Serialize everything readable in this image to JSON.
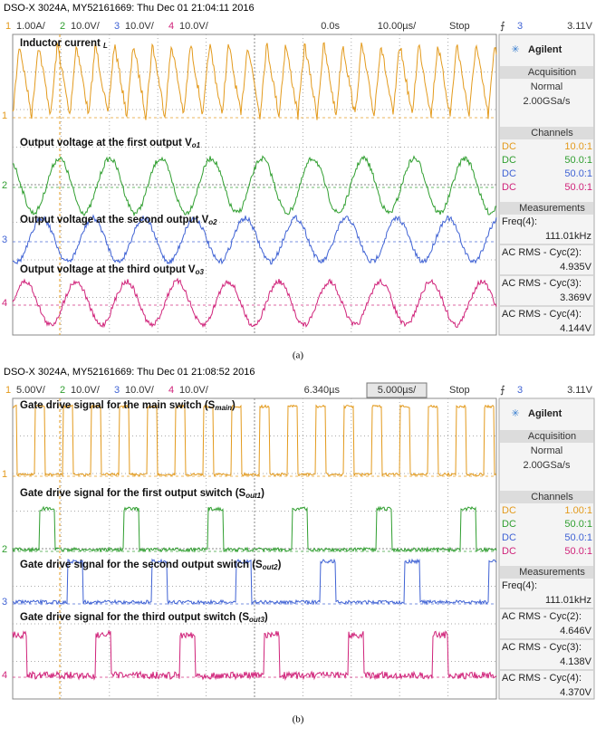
{
  "panels": [
    {
      "header": "DSO-X 3024A, MY52161669: Thu Dec 01 21:04:11 2016",
      "channels": [
        {
          "num": "1",
          "scale": "1.00A/"
        },
        {
          "num": "2",
          "scale": "10.0V/"
        },
        {
          "num": "3",
          "scale": "10.0V/"
        },
        {
          "num": "4",
          "scale": "10.0V/"
        }
      ],
      "time_offset": "0.0s",
      "time_scale": "10.00µs/",
      "status": "Stop",
      "trigger_channel": "3",
      "trigger_level": "3.11V",
      "traces": [
        {
          "prefix": "Inductor current ",
          "sub": "L",
          "suffix": ""
        },
        {
          "prefix": "Output voltage at the first output V",
          "sub": "o1",
          "suffix": ""
        },
        {
          "prefix": "Output voltage at the second output V",
          "sub": "o2",
          "suffix": ""
        },
        {
          "prefix": "Output voltage at the third output V",
          "sub": "o3",
          "suffix": ""
        }
      ],
      "side": {
        "brand": "Agilent",
        "acquisition_title": "Acquisition",
        "acquisition_mode": "Normal",
        "sample_rate": "2.00GSa/s",
        "channels_title": "Channels",
        "channel_rows": [
          {
            "coupling": "DC",
            "probe": "10.0:1"
          },
          {
            "coupling": "DC",
            "probe": "50.0:1"
          },
          {
            "coupling": "DC",
            "probe": "50.0:1"
          },
          {
            "coupling": "DC",
            "probe": "50.0:1"
          }
        ],
        "measurements_title": "Measurements",
        "measurements": [
          {
            "label": "Freq(4):",
            "value": "111.01kHz"
          },
          {
            "label": "AC RMS - Cyc(2):",
            "value": "4.935V"
          },
          {
            "label": "AC RMS - Cyc(3):",
            "value": "3.369V"
          },
          {
            "label": "AC RMS - Cyc(4):",
            "value": "4.144V"
          }
        ]
      },
      "caption": "(a)"
    },
    {
      "header": "DSO-X 3024A, MY52161669: Thu Dec 01 21:08:52 2016",
      "channels": [
        {
          "num": "1",
          "scale": "5.00V/"
        },
        {
          "num": "2",
          "scale": "10.0V/"
        },
        {
          "num": "3",
          "scale": "10.0V/"
        },
        {
          "num": "4",
          "scale": "10.0V/"
        }
      ],
      "time_offset": "6.340µs",
      "time_scale": "5.000µs/",
      "status": "Stop",
      "trigger_channel": "3",
      "trigger_level": "3.11V",
      "traces": [
        {
          "prefix": "Gate drive signal for the main switch (S",
          "sub": "main",
          "suffix": ")"
        },
        {
          "prefix": "Gate drive signal for the first output switch (S",
          "sub": "out1",
          "suffix": ")"
        },
        {
          "prefix": "Gate drive signal for the second output switch (S",
          "sub": "out2",
          "suffix": ")"
        },
        {
          "prefix": "Gate drive signal for the third output switch (S",
          "sub": "out3",
          "suffix": ")"
        }
      ],
      "side": {
        "brand": "Agilent",
        "acquisition_title": "Acquisition",
        "acquisition_mode": "Normal",
        "sample_rate": "2.00GSa/s",
        "channels_title": "Channels",
        "channel_rows": [
          {
            "coupling": "DC",
            "probe": "1.00:1"
          },
          {
            "coupling": "DC",
            "probe": "50.0:1"
          },
          {
            "coupling": "DC",
            "probe": "50.0:1"
          },
          {
            "coupling": "DC",
            "probe": "50.0:1"
          }
        ],
        "measurements_title": "Measurements",
        "measurements": [
          {
            "label": "Freq(4):",
            "value": "111.01kHz"
          },
          {
            "label": "AC RMS - Cyc(2):",
            "value": "4.646V"
          },
          {
            "label": "AC RMS - Cyc(3):",
            "value": "4.138V"
          },
          {
            "label": "AC RMS - Cyc(4):",
            "value": "4.370V"
          }
        ]
      },
      "caption": "(b)"
    }
  ]
}
